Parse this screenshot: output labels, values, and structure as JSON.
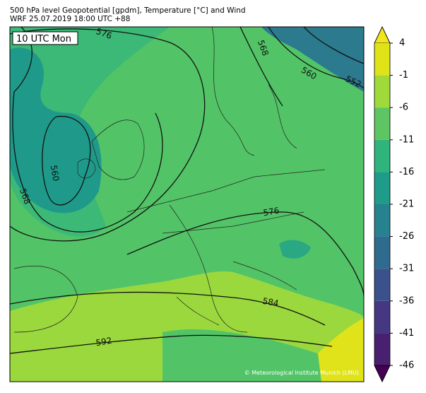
{
  "header": {
    "title": "500 hPa level Geopotential [gpdm], Temperature [°C] and Wind",
    "subtitle": "WRF 25.07.2019 18:00 UTC +88"
  },
  "map": {
    "time_label": "10 UTC Mon",
    "contour_labels": [
      576,
      568,
      560,
      552,
      560,
      568,
      576,
      584,
      592
    ],
    "credit": "© Meteorological Institute Munich (LMU)"
  },
  "colorbar": {
    "ticks": [
      4,
      -1,
      -6,
      -11,
      -16,
      -21,
      -26,
      -31,
      -36,
      -41,
      -46
    ],
    "colors": [
      "#f0e51f",
      "#dfe318",
      "#9fd93a",
      "#5ec563",
      "#2fb47c",
      "#1f9b8a",
      "#26828e",
      "#2f6b8e",
      "#3b518b",
      "#453781",
      "#48206f",
      "#440154"
    ]
  }
}
